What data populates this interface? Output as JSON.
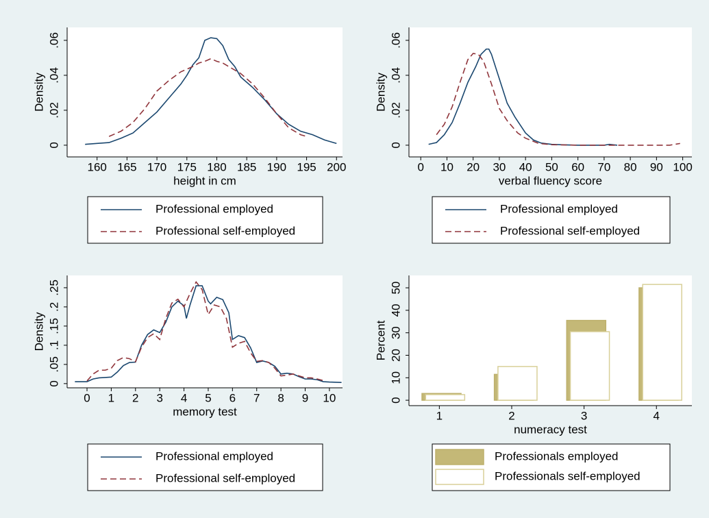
{
  "chart_data": [
    {
      "type": "line",
      "x_label": "height in cm",
      "y_label": "Density",
      "xlim": [
        155,
        201
      ],
      "ylim": [
        -0.0067,
        0.0674
      ],
      "xticks": [
        160,
        165,
        170,
        175,
        180,
        185,
        190,
        195,
        200
      ],
      "yticks": [
        0,
        {
          "value": 0.02,
          "label": ".02"
        },
        {
          "value": 0.04,
          "label": ".04"
        },
        {
          "value": 0.06,
          "label": ".06"
        }
      ],
      "grid": false,
      "legend": "bottom",
      "series": [
        {
          "name": "Professional employed",
          "color": "#1a476f",
          "line_style": "solid",
          "x": [
            158,
            160,
            162,
            164,
            166,
            168,
            170,
            172,
            174,
            175,
            176,
            177,
            178,
            179,
            180,
            181,
            182,
            183,
            184,
            186,
            188,
            190,
            192,
            194,
            196,
            198,
            200
          ],
          "values": [
            0.0005,
            0.001,
            0.0015,
            0.004,
            0.007,
            0.013,
            0.019,
            0.027,
            0.035,
            0.04,
            0.046,
            0.05,
            0.06,
            0.0615,
            0.061,
            0.057,
            0.049,
            0.045,
            0.039,
            0.033,
            0.026,
            0.018,
            0.012,
            0.008,
            0.006,
            0.003,
            0.001
          ]
        },
        {
          "name": "Professional self-employed",
          "color": "#90353b",
          "line_style": "dashed",
          "x": [
            162,
            164,
            166,
            168,
            170,
            172,
            174,
            176,
            177,
            178,
            179,
            180,
            181,
            182,
            184,
            186,
            188,
            190,
            192,
            194,
            195
          ],
          "values": [
            0.005,
            0.008,
            0.013,
            0.021,
            0.031,
            0.037,
            0.042,
            0.045,
            0.047,
            0.048,
            0.0495,
            0.048,
            0.047,
            0.045,
            0.041,
            0.035,
            0.027,
            0.018,
            0.01,
            0.006,
            0.005
          ]
        }
      ]
    },
    {
      "type": "line",
      "x_label": "verbal fluency score",
      "y_label": "Density",
      "xlim": [
        -4.5,
        103.5
      ],
      "ylim": [
        -0.0067,
        0.0674
      ],
      "xticks": [
        0,
        10,
        20,
        30,
        40,
        50,
        60,
        70,
        80,
        90,
        100
      ],
      "yticks": [
        0,
        {
          "value": 0.02,
          "label": ".02"
        },
        {
          "value": 0.04,
          "label": ".04"
        },
        {
          "value": 0.06,
          "label": ".06"
        }
      ],
      "grid": false,
      "legend": "bottom",
      "series": [
        {
          "name": "Professional employed",
          "color": "#1a476f",
          "line_style": "solid",
          "x": [
            3,
            6,
            9,
            12,
            15,
            18,
            21,
            23,
            25,
            26,
            27,
            30,
            33,
            36,
            40,
            43,
            46,
            50,
            55,
            60,
            70,
            72,
            75
          ],
          "values": [
            0.0005,
            0.0015,
            0.006,
            0.013,
            0.024,
            0.036,
            0.045,
            0.052,
            0.055,
            0.055,
            0.052,
            0.038,
            0.024,
            0.016,
            0.007,
            0.003,
            0.0012,
            0.0005,
            0.0002,
            0,
            0,
            0.0005,
            0
          ]
        },
        {
          "name": "Professional self-employed",
          "color": "#90353b",
          "line_style": "dashed",
          "x": [
            6,
            9,
            12,
            15,
            18,
            20,
            22,
            24,
            27,
            30,
            33,
            37,
            40,
            45,
            50,
            60,
            70,
            80,
            90,
            95,
            99
          ],
          "values": [
            0.006,
            0.012,
            0.022,
            0.036,
            0.049,
            0.0525,
            0.052,
            0.048,
            0.035,
            0.021,
            0.014,
            0.007,
            0.004,
            0.001,
            0.0003,
            0,
            0,
            0,
            0,
            0,
            0.001
          ]
        }
      ]
    },
    {
      "type": "line",
      "x_label": "memory test",
      "y_label": "Density",
      "xlim": [
        -0.82,
        10.54
      ],
      "ylim": [
        -0.011,
        0.282
      ],
      "xticks": [
        0,
        1,
        2,
        3,
        4,
        5,
        6,
        7,
        8,
        9,
        10
      ],
      "yticks": [
        0,
        {
          "value": 0.05,
          "label": ".05"
        },
        {
          "value": 0.1,
          "label": ".1"
        },
        {
          "value": 0.15,
          "label": ".15"
        },
        {
          "value": 0.2,
          "label": ".2"
        },
        {
          "value": 0.25,
          "label": ".25"
        }
      ],
      "grid": false,
      "legend": "bottom",
      "series": [
        {
          "name": "Professional employed",
          "color": "#1a476f",
          "line_style": "solid",
          "x": [
            -0.5,
            0,
            0.25,
            0.5,
            0.75,
            1,
            1.25,
            1.5,
            1.75,
            2,
            2.25,
            2.5,
            2.75,
            3,
            3.25,
            3.5,
            3.75,
            4,
            4.1,
            4.25,
            4.5,
            4.75,
            5,
            5.1,
            5.35,
            5.6,
            5.85,
            6,
            6.25,
            6.5,
            6.75,
            7,
            7.25,
            7.5,
            7.75,
            8,
            8.25,
            8.5,
            8.75,
            9,
            9.25,
            9.5,
            9.75,
            10,
            10.5
          ],
          "values": [
            0.005,
            0.005,
            0.012,
            0.015,
            0.016,
            0.017,
            0.03,
            0.047,
            0.055,
            0.056,
            0.1,
            0.128,
            0.14,
            0.133,
            0.16,
            0.2,
            0.215,
            0.203,
            0.17,
            0.205,
            0.255,
            0.255,
            0.215,
            0.208,
            0.225,
            0.219,
            0.185,
            0.115,
            0.125,
            0.12,
            0.093,
            0.055,
            0.059,
            0.055,
            0.045,
            0.025,
            0.027,
            0.025,
            0.018,
            0.012,
            0.012,
            0.01,
            0.005,
            0.004,
            0.003
          ]
        },
        {
          "name": "Professional self-employed",
          "color": "#90353b",
          "line_style": "dashed",
          "x": [
            0,
            0.25,
            0.5,
            0.75,
            1,
            1.25,
            1.5,
            1.75,
            2,
            2.25,
            2.5,
            2.75,
            3,
            3.25,
            3.5,
            3.75,
            4,
            4.25,
            4.5,
            4.75,
            5,
            5.25,
            5.5,
            5.75,
            6,
            6.25,
            6.5,
            6.75,
            7,
            7.25,
            7.5,
            7.75,
            8,
            8.25,
            8.5,
            8.75,
            9,
            9.25,
            9.5,
            9.75
          ],
          "values": [
            0.007,
            0.025,
            0.035,
            0.035,
            0.04,
            0.06,
            0.068,
            0.065,
            0.057,
            0.095,
            0.12,
            0.13,
            0.115,
            0.17,
            0.21,
            0.22,
            0.2,
            0.235,
            0.265,
            0.245,
            0.18,
            0.205,
            0.2,
            0.17,
            0.095,
            0.105,
            0.11,
            0.08,
            0.058,
            0.06,
            0.055,
            0.04,
            0.02,
            0.022,
            0.025,
            0.02,
            0.015,
            0.015,
            0.012,
            0.008
          ]
        }
      ]
    },
    {
      "type": "bar",
      "x_label": "numeracy test",
      "y_label": "Percent",
      "xlim": [
        0.58,
        4.49
      ],
      "ylim": [
        -2.4,
        55.5
      ],
      "x": [
        1,
        2,
        3,
        4
      ],
      "xticks": [
        1,
        2,
        3,
        4
      ],
      "yticks": [
        0,
        10,
        20,
        30,
        40,
        50
      ],
      "grid": false,
      "legend": "bottom",
      "series": [
        {
          "name": "Professionals employed",
          "color": "#c4b877",
          "edgecolor": "#bdb06c",
          "values": [
            3,
            11.5,
            35.5,
            50
          ]
        },
        {
          "name": "Professionals self-employed",
          "color": "#ffffff",
          "edgecolor": "#d8cf98",
          "values": [
            2.5,
            15,
            30.5,
            51.5
          ]
        }
      ]
    }
  ]
}
